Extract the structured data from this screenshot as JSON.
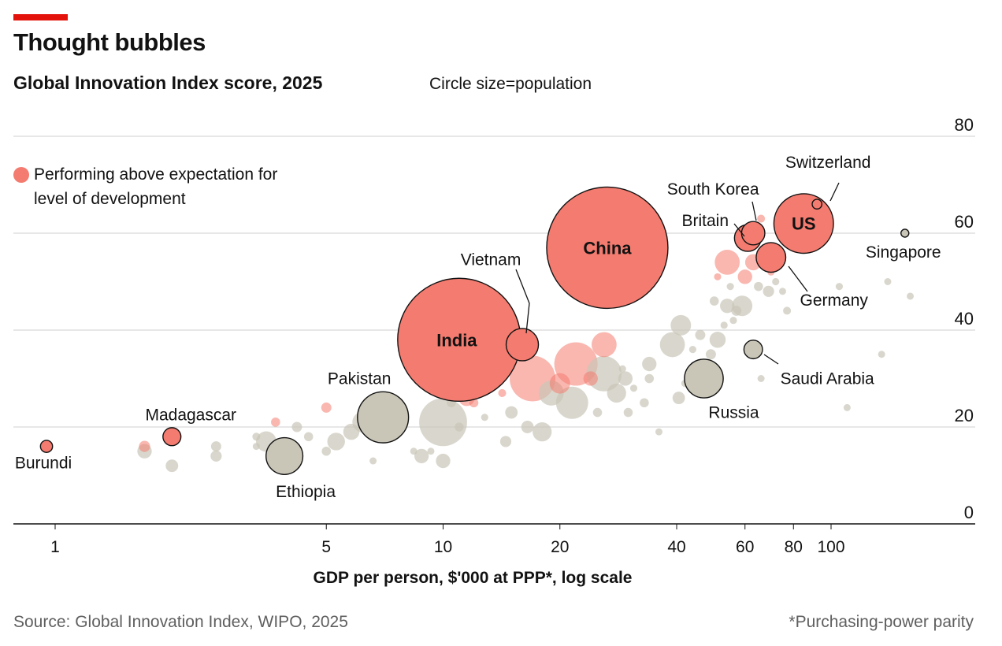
{
  "header": {
    "title": "Thought bubbles",
    "subtitle": "Global Innovation Index score, 2025",
    "size_note": "Circle size=population"
  },
  "legend": {
    "label": "Performing above expectation for level of development",
    "color": "#f47b6f"
  },
  "footer": {
    "source": "Source: Global Innovation Index, WIPO, 2025",
    "footnote": "*Purchasing-power parity"
  },
  "colors": {
    "above": "#f47b6f",
    "other": "#c9c6b8",
    "accent_bar": "#e3120b",
    "grid": "#cfcfcf"
  },
  "chart_data": {
    "type": "scatter",
    "title": "Thought bubbles",
    "subtitle": "Global Innovation Index score, 2025",
    "xlabel": "GDP per person, $'000 at PPP*, log scale",
    "ylabel": "",
    "x_scale": "log",
    "xlim": [
      0.7,
      230
    ],
    "ylim": [
      0,
      80
    ],
    "xticks": [
      1,
      5,
      10,
      20,
      40,
      60,
      80,
      100
    ],
    "yticks": [
      0,
      20,
      40,
      60,
      80
    ],
    "grid": true,
    "legend_position": "top-left",
    "size_encoding": "population",
    "labeled_points": [
      {
        "name": "Burundi",
        "x": 0.95,
        "y": 16,
        "pop_m": 14,
        "above": true
      },
      {
        "name": "Madagascar",
        "x": 2.0,
        "y": 18,
        "pop_m": 31,
        "above": true
      },
      {
        "name": "Ethiopia",
        "x": 3.9,
        "y": 14,
        "pop_m": 130,
        "above": false
      },
      {
        "name": "Pakistan",
        "x": 7.0,
        "y": 22,
        "pop_m": 250,
        "above": false
      },
      {
        "name": "India",
        "x": 11.0,
        "y": 38,
        "pop_m": 1450,
        "above": true
      },
      {
        "name": "Vietnam",
        "x": 16.0,
        "y": 37,
        "pop_m": 100,
        "above": true
      },
      {
        "name": "China",
        "x": 26.5,
        "y": 57,
        "pop_m": 1410,
        "above": true
      },
      {
        "name": "Russia",
        "x": 47.0,
        "y": 30,
        "pop_m": 144,
        "above": false
      },
      {
        "name": "Saudi Arabia",
        "x": 63.0,
        "y": 36,
        "pop_m": 33,
        "above": false
      },
      {
        "name": "Britain",
        "x": 61.0,
        "y": 59,
        "pop_m": 68,
        "above": true
      },
      {
        "name": "South Korea",
        "x": 63.0,
        "y": 60,
        "pop_m": 52,
        "above": true
      },
      {
        "name": "Germany",
        "x": 70.0,
        "y": 55,
        "pop_m": 84,
        "above": true
      },
      {
        "name": "US",
        "x": 85.0,
        "y": 62,
        "pop_m": 340,
        "above": true
      },
      {
        "name": "Switzerland",
        "x": 92.0,
        "y": 66,
        "pop_m": 9,
        "above": true
      },
      {
        "name": "Singapore",
        "x": 155.0,
        "y": 60,
        "pop_m": 6,
        "above": false
      }
    ],
    "other_points": [
      {
        "x": 1.7,
        "y": 15,
        "pop_m": 20,
        "above": false
      },
      {
        "x": 1.7,
        "y": 16,
        "pop_m": 12,
        "above": true
      },
      {
        "x": 2.0,
        "y": 12,
        "pop_m": 15,
        "above": false
      },
      {
        "x": 2.6,
        "y": 16,
        "pop_m": 10,
        "above": false
      },
      {
        "x": 2.6,
        "y": 14,
        "pop_m": 12,
        "above": false
      },
      {
        "x": 3.3,
        "y": 18,
        "pop_m": 6,
        "above": false
      },
      {
        "x": 3.3,
        "y": 16,
        "pop_m": 3,
        "above": false
      },
      {
        "x": 3.5,
        "y": 17,
        "pop_m": 40,
        "above": false
      },
      {
        "x": 3.7,
        "y": 21,
        "pop_m": 8,
        "above": true
      },
      {
        "x": 4.2,
        "y": 20,
        "pop_m": 10,
        "above": false
      },
      {
        "x": 4.5,
        "y": 18,
        "pop_m": 8,
        "above": false
      },
      {
        "x": 5.0,
        "y": 24,
        "pop_m": 10,
        "above": true
      },
      {
        "x": 5.0,
        "y": 15,
        "pop_m": 8,
        "above": false
      },
      {
        "x": 5.3,
        "y": 17,
        "pop_m": 30,
        "above": false
      },
      {
        "x": 5.8,
        "y": 19,
        "pop_m": 25,
        "above": false
      },
      {
        "x": 6.2,
        "y": 21,
        "pop_m": 40,
        "above": false
      },
      {
        "x": 6.6,
        "y": 13,
        "pop_m": 3,
        "above": false
      },
      {
        "x": 7.2,
        "y": 19,
        "pop_m": 20,
        "above": false
      },
      {
        "x": 7.8,
        "y": 22,
        "pop_m": 15,
        "above": false
      },
      {
        "x": 8.4,
        "y": 15,
        "pop_m": 3,
        "above": false
      },
      {
        "x": 8.8,
        "y": 14,
        "pop_m": 20,
        "above": false
      },
      {
        "x": 9.3,
        "y": 15,
        "pop_m": 3,
        "above": false
      },
      {
        "x": 10.0,
        "y": 21,
        "pop_m": 220,
        "above": false
      },
      {
        "x": 10.0,
        "y": 13,
        "pop_m": 20,
        "above": false
      },
      {
        "x": 10.5,
        "y": 25,
        "pop_m": 8,
        "above": false
      },
      {
        "x": 11.0,
        "y": 20,
        "pop_m": 8,
        "above": false
      },
      {
        "x": 11.5,
        "y": 26,
        "pop_m": 25,
        "above": true
      },
      {
        "x": 12.0,
        "y": 25,
        "pop_m": 8,
        "above": true
      },
      {
        "x": 12.8,
        "y": 22,
        "pop_m": 5,
        "above": false
      },
      {
        "x": 14.2,
        "y": 27,
        "pop_m": 6,
        "above": true
      },
      {
        "x": 14.5,
        "y": 17,
        "pop_m": 12,
        "above": false
      },
      {
        "x": 15.0,
        "y": 23,
        "pop_m": 15,
        "above": false
      },
      {
        "x": 16.5,
        "y": 20,
        "pop_m": 15,
        "above": false
      },
      {
        "x": 17.0,
        "y": 30,
        "pop_m": 200,
        "above": true
      },
      {
        "x": 18.0,
        "y": 19,
        "pop_m": 35,
        "above": false
      },
      {
        "x": 19.0,
        "y": 27,
        "pop_m": 60,
        "above": false
      },
      {
        "x": 20.0,
        "y": 29,
        "pop_m": 40,
        "above": true
      },
      {
        "x": 21.5,
        "y": 25,
        "pop_m": 100,
        "above": false
      },
      {
        "x": 22.0,
        "y": 33,
        "pop_m": 180,
        "above": true
      },
      {
        "x": 24.0,
        "y": 30,
        "pop_m": 20,
        "above": true
      },
      {
        "x": 25.0,
        "y": 23,
        "pop_m": 8,
        "above": false
      },
      {
        "x": 26.0,
        "y": 37,
        "pop_m": 60,
        "above": true
      },
      {
        "x": 26.0,
        "y": 31,
        "pop_m": 120,
        "above": false
      },
      {
        "x": 28.0,
        "y": 27,
        "pop_m": 35,
        "above": false
      },
      {
        "x": 29.5,
        "y": 30,
        "pop_m": 20,
        "above": false
      },
      {
        "x": 29.0,
        "y": 32,
        "pop_m": 5,
        "above": false
      },
      {
        "x": 30.0,
        "y": 23,
        "pop_m": 8,
        "above": false
      },
      {
        "x": 31.0,
        "y": 28,
        "pop_m": 5,
        "above": false
      },
      {
        "x": 33.0,
        "y": 25,
        "pop_m": 8,
        "above": false
      },
      {
        "x": 34.0,
        "y": 33,
        "pop_m": 20,
        "above": false
      },
      {
        "x": 34.0,
        "y": 30,
        "pop_m": 8,
        "above": false
      },
      {
        "x": 36.0,
        "y": 19,
        "pop_m": 2,
        "above": false
      },
      {
        "x": 39.0,
        "y": 37,
        "pop_m": 60,
        "above": false
      },
      {
        "x": 40.5,
        "y": 26,
        "pop_m": 15,
        "above": false
      },
      {
        "x": 41.0,
        "y": 41,
        "pop_m": 40,
        "above": false
      },
      {
        "x": 42.0,
        "y": 29,
        "pop_m": 5,
        "above": false
      },
      {
        "x": 44.0,
        "y": 36,
        "pop_m": 5,
        "above": false
      },
      {
        "x": 46.0,
        "y": 39,
        "pop_m": 10,
        "above": false
      },
      {
        "x": 49.0,
        "y": 35,
        "pop_m": 10,
        "above": false
      },
      {
        "x": 50.0,
        "y": 46,
        "pop_m": 8,
        "above": false
      },
      {
        "x": 51.0,
        "y": 38,
        "pop_m": 25,
        "above": false
      },
      {
        "x": 51.0,
        "y": 51,
        "pop_m": 3,
        "above": true
      },
      {
        "x": 53.0,
        "y": 41,
        "pop_m": 5,
        "above": false
      },
      {
        "x": 54.0,
        "y": 54,
        "pop_m": 60,
        "above": true
      },
      {
        "x": 54.0,
        "y": 45,
        "pop_m": 20,
        "above": false
      },
      {
        "x": 55.0,
        "y": 49,
        "pop_m": 5,
        "above": false
      },
      {
        "x": 56.0,
        "y": 42,
        "pop_m": 5,
        "above": false
      },
      {
        "x": 57.0,
        "y": 44,
        "pop_m": 10,
        "above": false
      },
      {
        "x": 59.0,
        "y": 45,
        "pop_m": 40,
        "above": false
      },
      {
        "x": 60.0,
        "y": 51,
        "pop_m": 20,
        "above": true
      },
      {
        "x": 63.0,
        "y": 54,
        "pop_m": 25,
        "above": true
      },
      {
        "x": 65.0,
        "y": 49,
        "pop_m": 8,
        "above": false
      },
      {
        "x": 66.0,
        "y": 63,
        "pop_m": 6,
        "above": true
      },
      {
        "x": 66.0,
        "y": 30,
        "pop_m": 3,
        "above": false
      },
      {
        "x": 69.0,
        "y": 48,
        "pop_m": 12,
        "above": false
      },
      {
        "x": 70.0,
        "y": 52,
        "pop_m": 5,
        "above": true
      },
      {
        "x": 72.0,
        "y": 50,
        "pop_m": 5,
        "above": false
      },
      {
        "x": 75.0,
        "y": 48,
        "pop_m": 4,
        "above": false
      },
      {
        "x": 77.0,
        "y": 44,
        "pop_m": 6,
        "above": false
      },
      {
        "x": 81.0,
        "y": 57,
        "pop_m": 10,
        "above": true
      },
      {
        "x": 81.0,
        "y": 60,
        "pop_m": 5,
        "above": true
      },
      {
        "x": 105.0,
        "y": 49,
        "pop_m": 5,
        "above": false
      },
      {
        "x": 110.0,
        "y": 24,
        "pop_m": 1,
        "above": false
      },
      {
        "x": 135.0,
        "y": 35,
        "pop_m": 3,
        "above": false
      },
      {
        "x": 140.0,
        "y": 50,
        "pop_m": 4,
        "above": false
      },
      {
        "x": 160.0,
        "y": 47,
        "pop_m": 1,
        "above": false
      }
    ]
  }
}
